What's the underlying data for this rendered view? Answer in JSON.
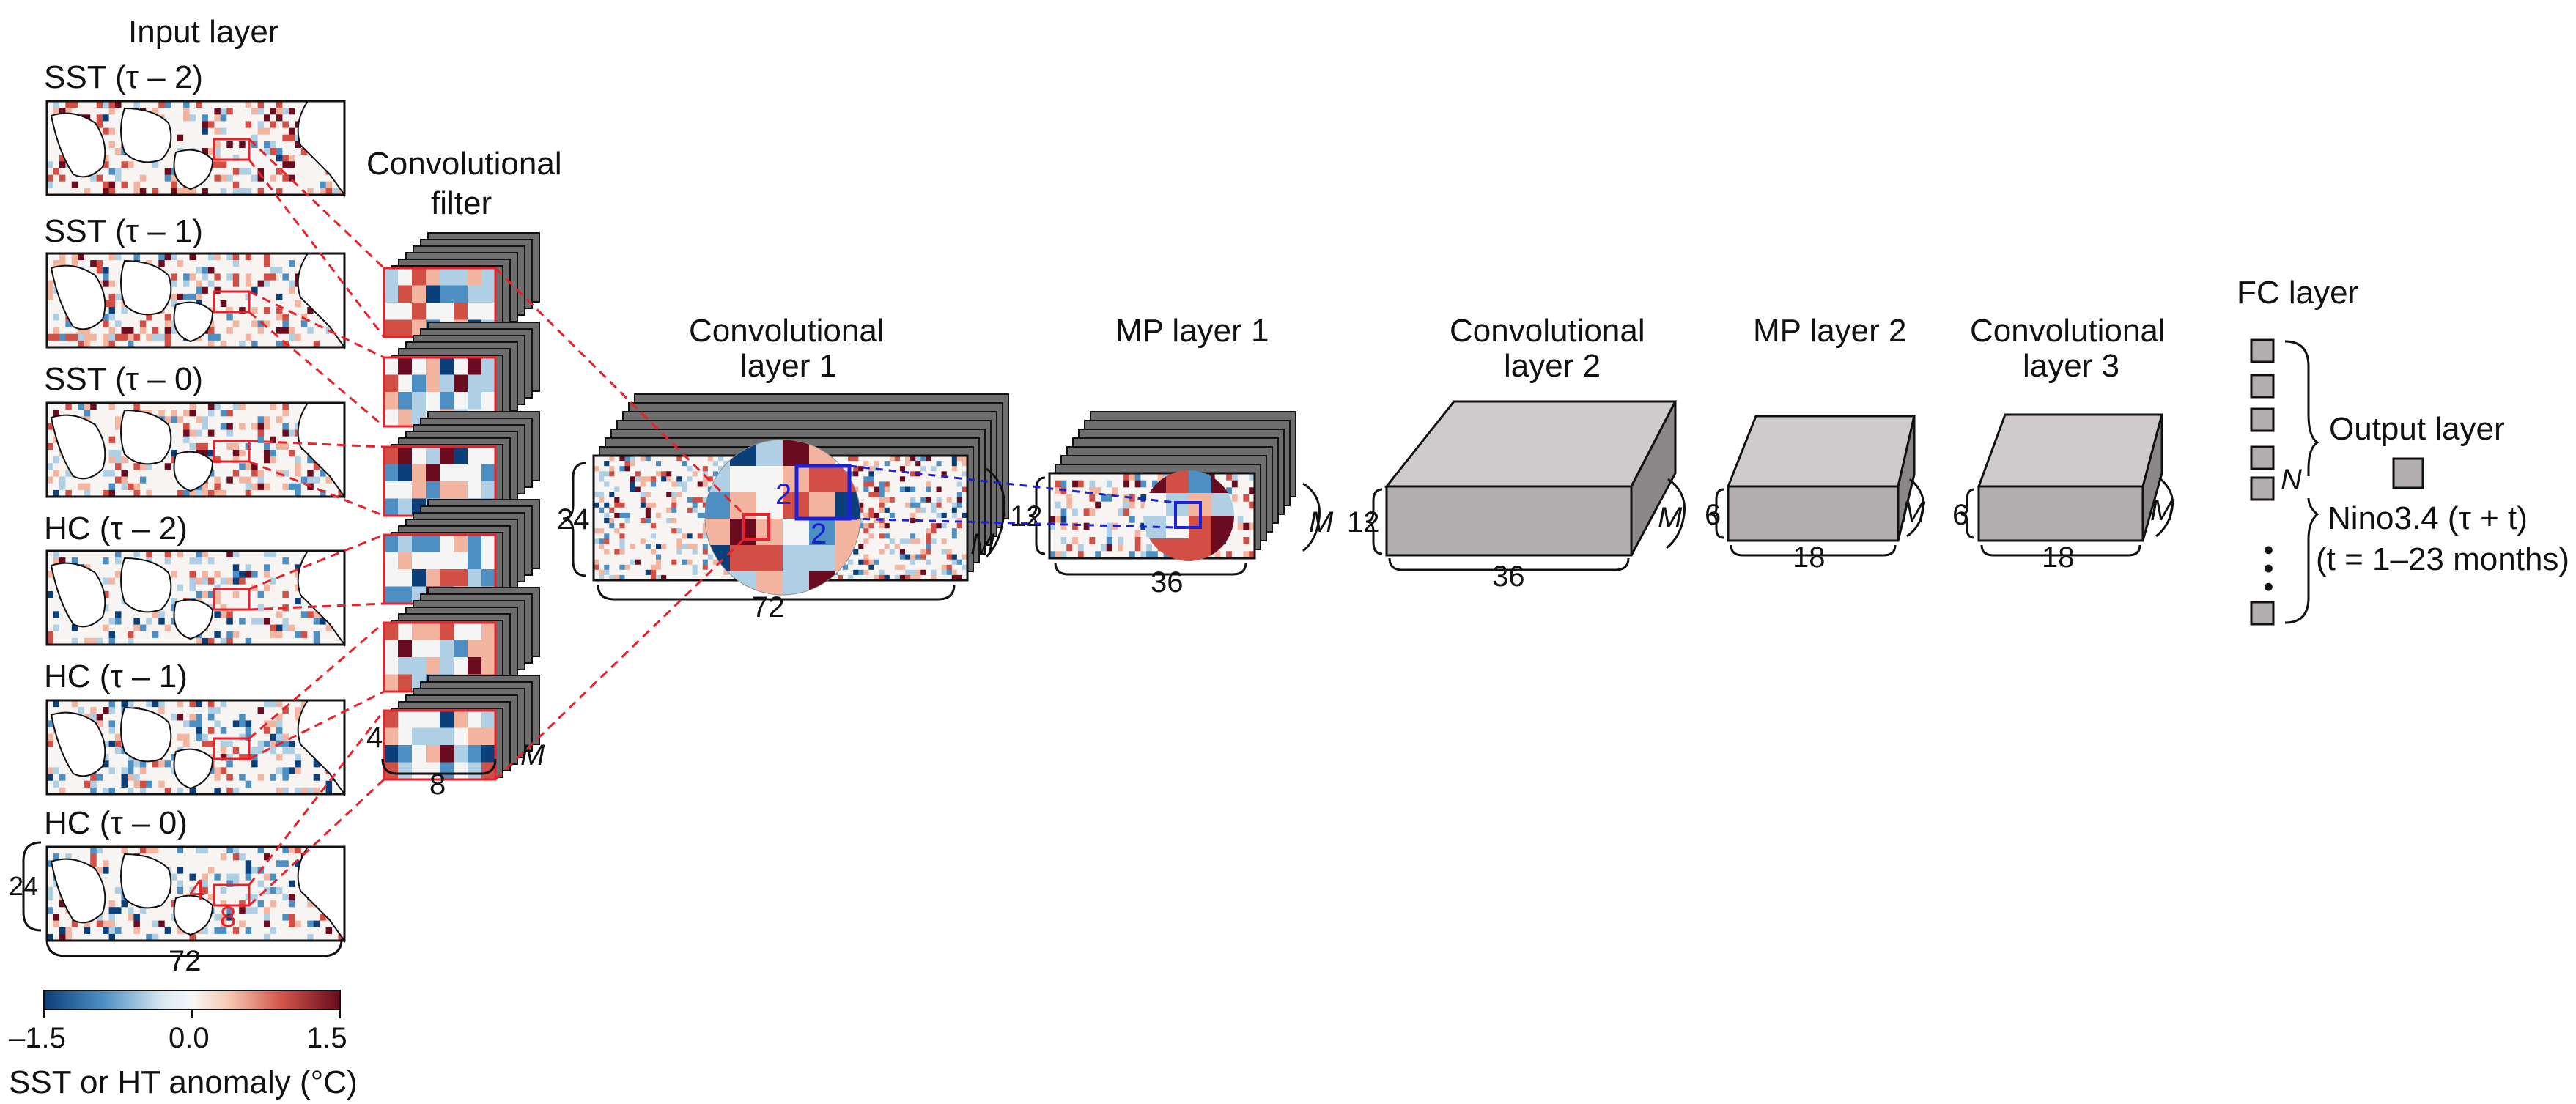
{
  "colors": {
    "filter_red": "#e8212a",
    "pool_blue": "#1d20d9",
    "box_face": "#b2aeb0",
    "box_top": "#cfcbcd",
    "box_side": "#8b8789",
    "stack_gray": "#6e6e6e",
    "cmap": [
      "#0a3f7a",
      "#4d8fc2",
      "#aecfe4",
      "#f5f5f5",
      "#f3b4a0",
      "#d14f45",
      "#6b0b1f"
    ]
  },
  "input": {
    "title": "Input layer",
    "maps": [
      {
        "label": "SST (τ – 2)"
      },
      {
        "label": "SST (τ – 1)"
      },
      {
        "label": "SST (τ – 0)"
      },
      {
        "label": "HC (τ – 2)"
      },
      {
        "label": "HC (τ – 1)"
      },
      {
        "label": "HC (τ – 0)"
      }
    ],
    "dim_rows": "24",
    "dim_cols": "72",
    "filter_h": "4",
    "filter_w": "8"
  },
  "conv_filter": {
    "title_line1": "Convolutional",
    "title_line2": "filter",
    "dim_h": "4",
    "dim_w": "8",
    "depth": "M"
  },
  "conv1": {
    "title_line1": "Convolutional",
    "title_line2": "layer 1",
    "dim_h": "24",
    "dim_w": "72",
    "depth": "M",
    "pool_h": "2",
    "pool_w": "2"
  },
  "mp1": {
    "title": "MP layer 1",
    "dim_h": "12",
    "dim_w": "36",
    "depth": "M"
  },
  "conv2": {
    "title_line1": "Convolutional",
    "title_line2": "layer 2",
    "dim_h": "12",
    "dim_w": "36",
    "depth": "M"
  },
  "mp2": {
    "title": "MP layer 2",
    "dim_h": "6",
    "dim_w": "18",
    "depth": "M"
  },
  "conv3": {
    "title_line1": "Convolutional",
    "title_line2": "layer 3",
    "dim_h": "6",
    "dim_w": "18",
    "depth": "M"
  },
  "fc": {
    "title": "FC layer",
    "n_label": "N",
    "dots": "• • •"
  },
  "output": {
    "title": "Output layer",
    "line1": "Nino3.4 (τ + t)",
    "line2": "(t = 1–23 months)"
  },
  "colorbar": {
    "ticks": [
      "–1.5",
      "0.0",
      "1.5"
    ],
    "label": "SST or HT anomaly (°C)"
  }
}
